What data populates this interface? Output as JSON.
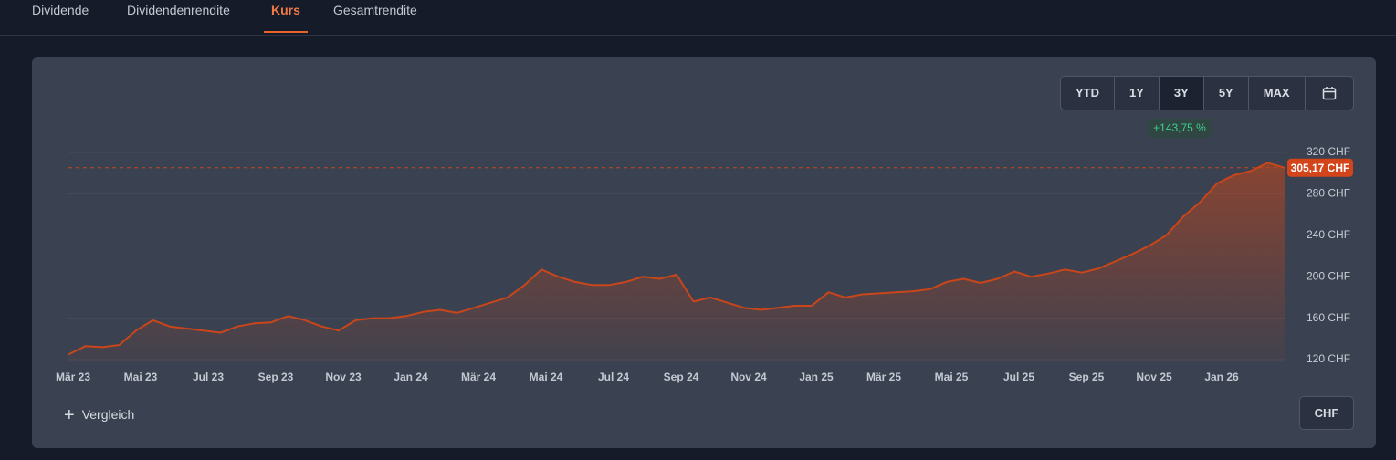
{
  "tabs": [
    "Dividende",
    "Dividendenrendite",
    "Kurs",
    "Gesamtrendite"
  ],
  "active_tab": 2,
  "range_buttons": [
    "YTD",
    "1Y",
    "3Y",
    "5Y",
    "MAX"
  ],
  "active_range": 2,
  "change_label": "+143,75 %",
  "compare_button": "Vergleich",
  "currency_button": "CHF",
  "chart_data": {
    "type": "line",
    "categories": [
      "Mär 23",
      null,
      null,
      null,
      "Mai 23",
      null,
      null,
      null,
      "Jul 23",
      null,
      null,
      null,
      "Sep 23",
      null,
      null,
      null,
      "Nov 23",
      null,
      null,
      null,
      "Jan 24",
      null,
      null,
      null,
      "Mär 24",
      null,
      null,
      null,
      "Mai 24",
      null,
      null,
      null,
      "Jul 24",
      null,
      null,
      null,
      "Sep 24",
      null,
      null,
      null,
      "Nov 24",
      null,
      null,
      null,
      "Jan 25",
      null,
      null,
      null,
      "Mär 25",
      null,
      null,
      null,
      "Mai 25",
      null,
      null,
      null,
      "Jul 25",
      null,
      null,
      null,
      "Sep 25",
      null,
      null,
      null,
      "Nov 25",
      null,
      null,
      null,
      "Jan 26",
      null,
      null,
      null,
      null
    ],
    "series": [
      {
        "name": "Kurs",
        "color": "#c9461a",
        "values": [
          125,
          133,
          132,
          134,
          148,
          158,
          152,
          150,
          148,
          146,
          152,
          155,
          156,
          162,
          158,
          152,
          148,
          158,
          160,
          160,
          162,
          166,
          168,
          165,
          170,
          175,
          180,
          192,
          207,
          200,
          195,
          192,
          192,
          195,
          200,
          198,
          202,
          176,
          180,
          175,
          170,
          168,
          170,
          172,
          172,
          185,
          180,
          183,
          184,
          185,
          186,
          188,
          195,
          198,
          194,
          198,
          205,
          200,
          203,
          207,
          204,
          208,
          215,
          222,
          230,
          240,
          258,
          272,
          290,
          298,
          302,
          310,
          305.17
        ]
      }
    ],
    "current": {
      "value": 305.17,
      "label": "305,17 CHF"
    },
    "ylim": [
      118,
      330
    ],
    "yticks": [
      {
        "value": 120,
        "label": "120 CHF"
      },
      {
        "value": 160,
        "label": "160 CHF"
      },
      {
        "value": 200,
        "label": "200 CHF"
      },
      {
        "value": 240,
        "label": "240 CHF"
      },
      {
        "value": 280,
        "label": "280 CHF"
      },
      {
        "value": 320,
        "label": "320 CHF"
      }
    ],
    "grid": true
  }
}
